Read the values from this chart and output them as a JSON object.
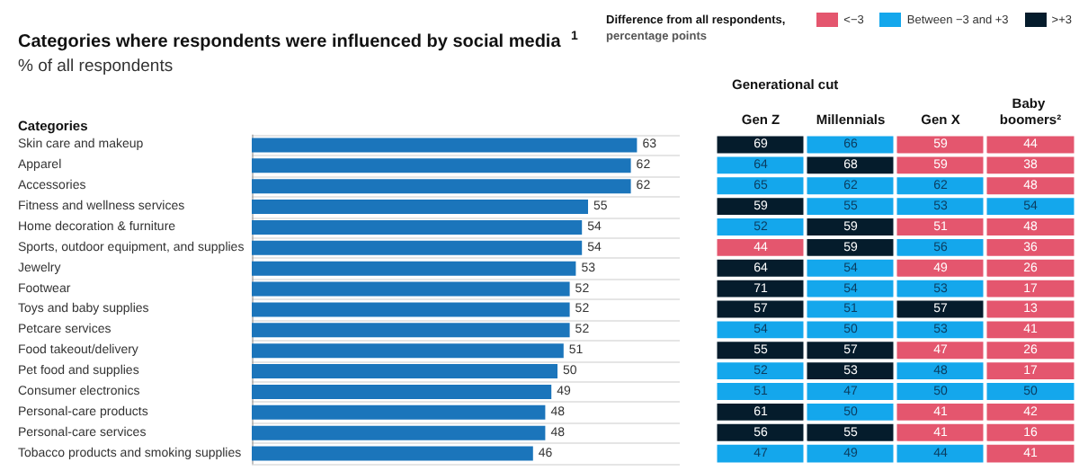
{
  "chart_data": [
    {
      "type": "bar",
      "orientation": "horizontal",
      "title": "Categories where respondents were influenced by social media $^{1}$",
      "subtitle": "% of all respondents",
      "ylabel": "Categories",
      "categories": [
        "Skin care and makeup",
        "Apparel",
        "Accessories",
        "Fitness and wellness services",
        "Home decoration & furniture",
        "Sports, outdoor equipment, and supplies",
        "Jewelry",
        "Footwear",
        "Toys and baby supplies",
        "Petcare services",
        "Food takeout/delivery",
        "Pet food and supplies",
        "Consumer electronics",
        "Personal-care products",
        "Personal-care services",
        "Tobacco products and smoking supplies"
      ],
      "values": [
        63,
        62,
        62,
        55,
        54,
        54,
        53,
        52,
        52,
        52,
        51,
        50,
        49,
        48,
        48,
        46
      ],
      "color": "#1b75bb",
      "data_labels": true,
      "grid": "y"
    },
    {
      "type": "heatmap",
      "title": "Generational cut",
      "legend_title": "Difference from all respondents,\npercentage points",
      "data_labels": true,
      "categories": [
        "Gen Z",
        "Millennials",
        "Gen X",
        "Baby boomers²"
      ],
      "y_categories": [
        null,
        null,
        null,
        null,
        null,
        null,
        null,
        null,
        null,
        null,
        null,
        null,
        null,
        null,
        null,
        null
      ],
      "cells": [
        [
          69,
          66,
          59,
          44
        ],
        [
          64,
          68,
          59,
          38
        ],
        [
          65,
          62,
          62,
          48
        ],
        [
          59,
          55,
          53,
          54
        ],
        [
          52,
          59,
          51,
          48
        ],
        [
          44,
          59,
          56,
          36
        ],
        [
          64,
          54,
          49,
          26
        ],
        [
          71,
          54,
          53,
          17
        ],
        [
          57,
          51,
          57,
          13
        ],
        [
          54,
          50,
          53,
          41
        ],
        [
          55,
          57,
          47,
          26
        ],
        [
          52,
          53,
          48,
          17
        ],
        [
          51,
          47,
          50,
          50
        ],
        [
          61,
          50,
          41,
          42
        ],
        [
          56,
          55,
          41,
          16
        ],
        [
          47,
          49,
          44,
          41
        ]
      ],
      "colors": [
        [
          "#051c2c",
          "#14a7ec",
          "#e4566e",
          "#e4566e"
        ],
        [
          "#14a7ec",
          "#051c2c",
          "#e4566e",
          "#e4566e"
        ],
        [
          "#14a7ec",
          "#14a7ec",
          "#14a7ec",
          "#e4566e"
        ],
        [
          "#051c2c",
          "#14a7ec",
          "#14a7ec",
          "#14a7ec"
        ],
        [
          "#14a7ec",
          "#051c2c",
          "#e4566e",
          "#e4566e"
        ],
        [
          "#e4566e",
          "#051c2c",
          "#14a7ec",
          "#e4566e"
        ],
        [
          "#051c2c",
          "#14a7ec",
          "#e4566e",
          "#e4566e"
        ],
        [
          "#051c2c",
          "#14a7ec",
          "#14a7ec",
          "#e4566e"
        ],
        [
          "#051c2c",
          "#14a7ec",
          "#051c2c",
          "#e4566e"
        ],
        [
          "#14a7ec",
          "#14a7ec",
          "#14a7ec",
          "#e4566e"
        ],
        [
          "#051c2c",
          "#051c2c",
          "#e4566e",
          "#e4566e"
        ],
        [
          "#14a7ec",
          "#051c2c",
          "#14a7ec",
          "#e4566e"
        ],
        [
          "#14a7ec",
          "#14a7ec",
          "#14a7ec",
          "#14a7ec"
        ],
        [
          "#051c2c",
          "#14a7ec",
          "#e4566e",
          "#e4566e"
        ],
        [
          "#051c2c",
          "#051c2c",
          "#e4566e",
          "#e4566e"
        ],
        [
          "#14a7ec",
          "#14a7ec",
          "#14a7ec",
          "#e4566e"
        ]
      ],
      "annotations": [
        "<−3",
        "Between −3 and +3",
        ">+3"
      ]
    }
  ]
}
